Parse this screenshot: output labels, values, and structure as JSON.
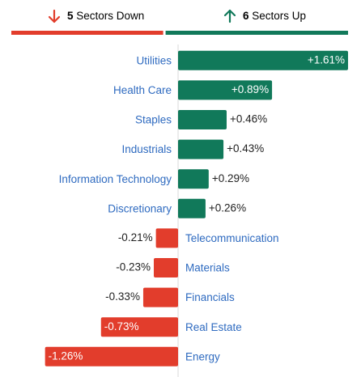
{
  "chart_data": {
    "type": "diverging-bar",
    "summary": {
      "down_count": 5,
      "down_text": "Sectors Down",
      "up_count": 6,
      "up_text": "Sectors Up"
    },
    "categories": [
      "Utilities",
      "Health Care",
      "Staples",
      "Industrials",
      "Information Technology",
      "Discretionary",
      "Telecommunication",
      "Materials",
      "Financials",
      "Real Estate",
      "Energy"
    ],
    "values": [
      1.61,
      0.89,
      0.46,
      0.43,
      0.29,
      0.26,
      -0.21,
      -0.23,
      -0.33,
      -0.73,
      -1.26
    ],
    "value_labels": [
      "+1.61%",
      "+0.89%",
      "+0.46%",
      "+0.43%",
      "+0.29%",
      "+0.26%",
      "-0.21%",
      "-0.23%",
      "-0.33%",
      "-0.73%",
      "-1.26%"
    ],
    "xlim": [
      -1.61,
      1.61
    ],
    "up_color": "#11795a",
    "down_color": "#e23d2c",
    "label_color": "#2f6bc0"
  }
}
